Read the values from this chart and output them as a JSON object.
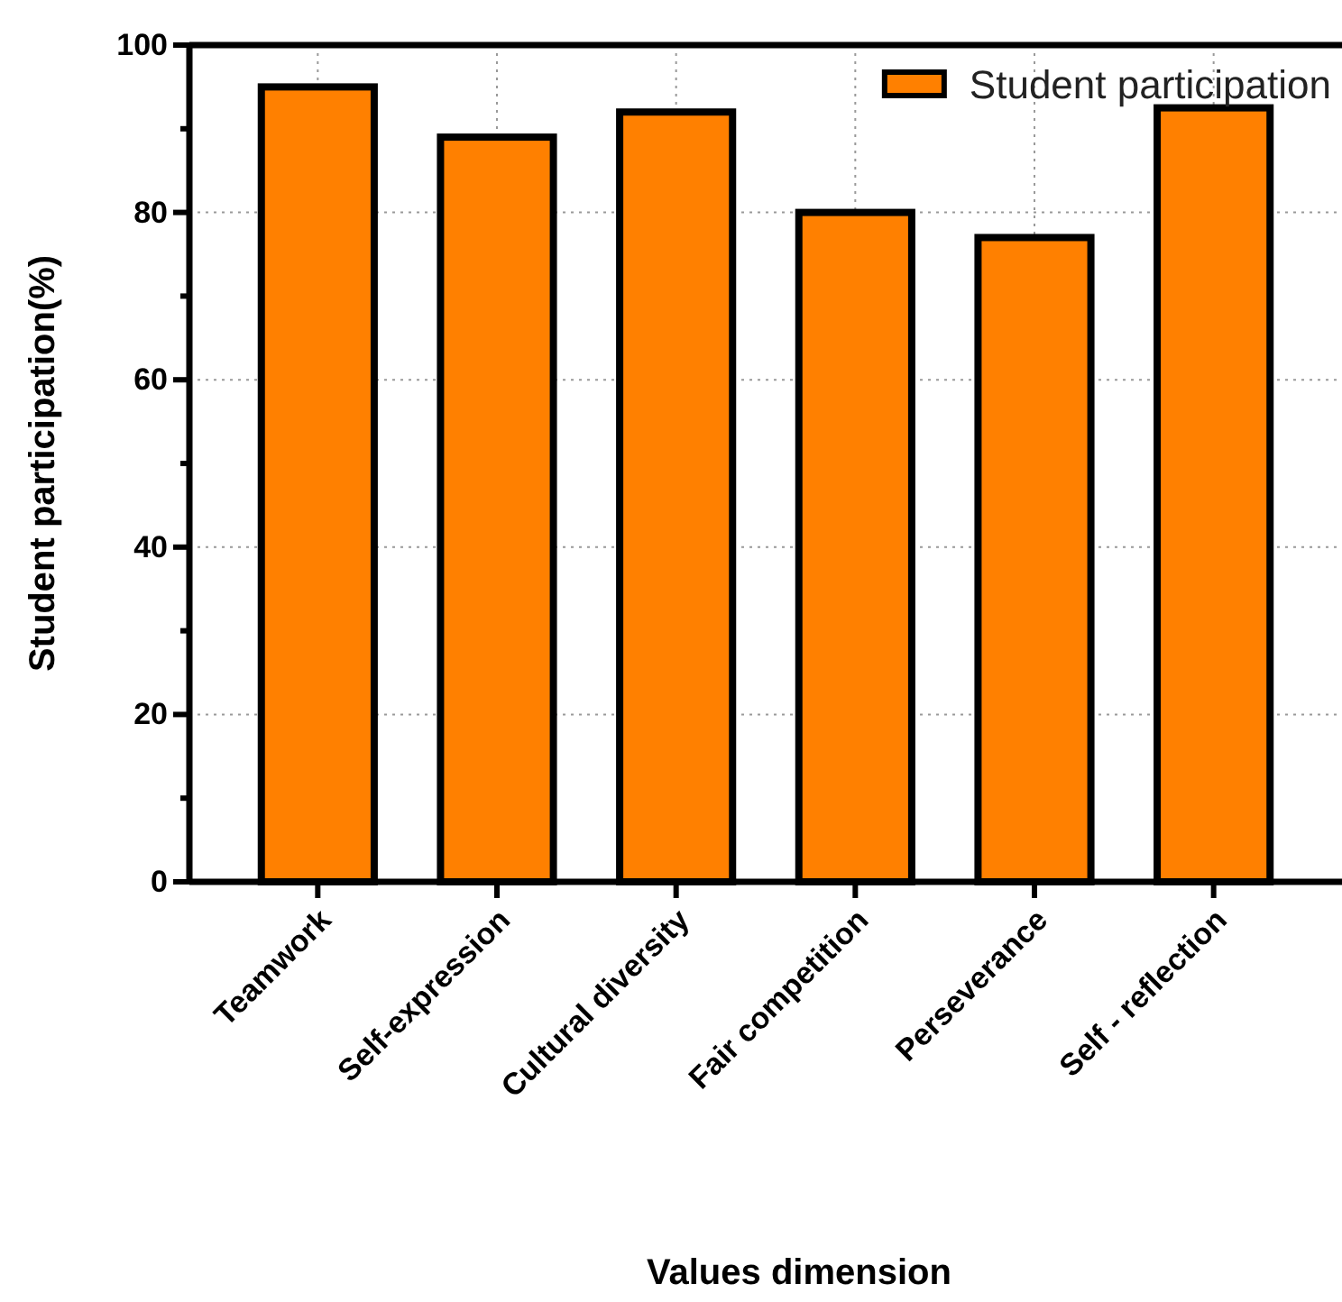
{
  "chart_data": {
    "type": "bar",
    "xlabel": "Values dimension",
    "ylabel": "Student participation(%)",
    "categories": [
      "Teamwork",
      "Self-expression",
      "Cultural diversity",
      "Fair competition",
      "Perseverance",
      "Self - reflection"
    ],
    "series": [
      {
        "name": "Student participation",
        "color": "#ff8000",
        "values": [
          95,
          89,
          92,
          80,
          77,
          92.5
        ]
      }
    ],
    "ylim": [
      0,
      100
    ],
    "yticks": [
      0,
      {
        "value": 10,
        "label": null
      },
      20,
      {
        "value": 30,
        "label": null
      },
      40,
      {
        "value": 50,
        "label": null
      },
      60,
      {
        "value": 70,
        "label": null
      },
      80,
      {
        "value": 90,
        "label": null
      },
      100
    ],
    "grid": true,
    "legend": "top right"
  }
}
